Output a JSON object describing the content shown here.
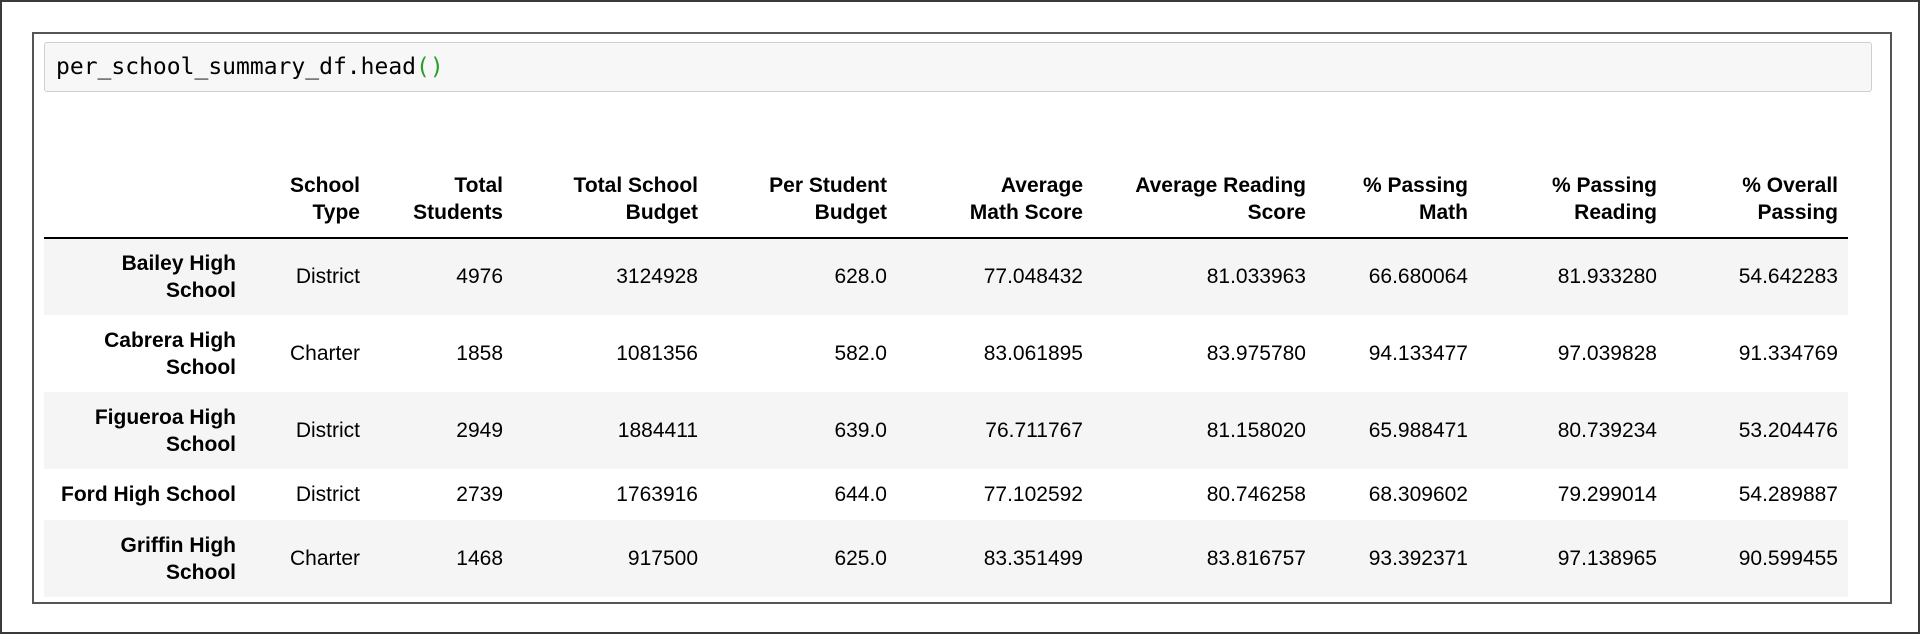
{
  "code_cell": {
    "code_prefix": "per_school_summary_df.head",
    "code_parens": "()"
  },
  "table": {
    "columns": [
      "",
      "School Type",
      "Total Students",
      "Total School Budget",
      "Per Student Budget",
      "Average Math Score",
      "Average Reading Score",
      "% Passing Math",
      "% Passing Reading",
      "% Overall Passing"
    ],
    "rows": [
      {
        "index": "Bailey High School",
        "cells": [
          "District",
          "4976",
          "3124928",
          "628.0",
          "77.048432",
          "81.033963",
          "66.680064",
          "81.933280",
          "54.642283"
        ]
      },
      {
        "index": "Cabrera High School",
        "cells": [
          "Charter",
          "1858",
          "1081356",
          "582.0",
          "83.061895",
          "83.975780",
          "94.133477",
          "97.039828",
          "91.334769"
        ]
      },
      {
        "index": "Figueroa High School",
        "cells": [
          "District",
          "2949",
          "1884411",
          "639.0",
          "76.711767",
          "81.158020",
          "65.988471",
          "80.739234",
          "53.204476"
        ]
      },
      {
        "index": "Ford High School",
        "cells": [
          "District",
          "2739",
          "1763916",
          "644.0",
          "77.102592",
          "80.746258",
          "68.309602",
          "79.299014",
          "54.289887"
        ]
      },
      {
        "index": "Griffin High School",
        "cells": [
          "Charter",
          "1468",
          "917500",
          "625.0",
          "83.351499",
          "83.816757",
          "93.392371",
          "97.138965",
          "90.599455"
        ]
      }
    ]
  }
}
